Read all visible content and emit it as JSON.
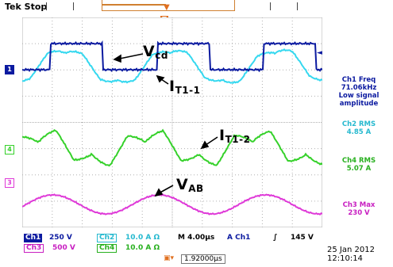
{
  "header": {
    "brand": "Tek",
    "state": "Stop"
  },
  "colors": {
    "ch1": "#0b1aa0",
    "ch2": "#35d8ef",
    "ch3": "#df3ad8",
    "ch4": "#35d12a",
    "trigger": "#e07020",
    "grid": "#b0b0b0"
  },
  "icons": {
    "trigger_position": "orange-t-marker",
    "trigger_level": "orange-arrow-marker",
    "cursor_delta": "delta-t-marker",
    "slope_rising": "rising-edge-icon"
  },
  "channel_markers": {
    "ch1": "1",
    "ch4": "4",
    "ch3": "3"
  },
  "annotations": {
    "vcd_main": "V",
    "vcd_sub": "cd",
    "it11_main": "I",
    "it11_sub": "T1-1",
    "it12_main": "I",
    "it12_sub": "T1-2",
    "vab_main": "V",
    "vab_sub": "AB"
  },
  "measurements": {
    "ch1_freq": [
      "Ch1 Freq",
      "71.06kHz",
      "Low signal",
      "amplitude"
    ],
    "ch2_rms": [
      "Ch2 RMS",
      "4.85 A"
    ],
    "ch4_rms": [
      "Ch4 RMS",
      "5.07 A"
    ],
    "ch3_max": [
      "Ch3 Max",
      "230 V"
    ]
  },
  "settings": {
    "ch1_label": "Ch1",
    "ch1_scale": "250 V",
    "ch2_label": "Ch2",
    "ch2_scale": "10.0 A Ω",
    "ch3_label": "Ch3",
    "ch3_scale": "500 V",
    "ch4_label": "Ch4",
    "ch4_scale": "10.0 A Ω",
    "timebase": "M 4.00µs",
    "trigger_source": "A  Ch1",
    "trigger_level": "145 V",
    "cursor_delta": "1.92000µs"
  },
  "datetime": {
    "date": "25 Jan  2012",
    "time": "12:10:14"
  }
}
